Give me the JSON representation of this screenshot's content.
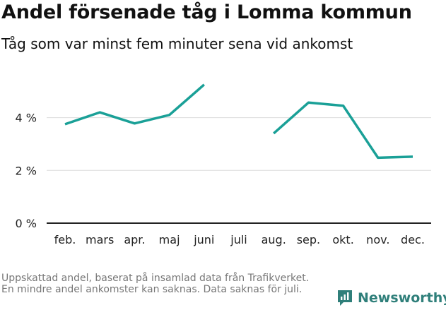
{
  "chart_data": {
    "type": "line",
    "title": "Andel försenade tåg i Lomma kommun",
    "subtitle": "Tåg som var minst fem minuter sena vid ankomst",
    "categories": [
      "feb.",
      "mars",
      "apr.",
      "maj",
      "juni",
      "juli",
      "aug.",
      "sep.",
      "okt.",
      "nov.",
      "dec."
    ],
    "series": [
      {
        "values": [
          3.75,
          4.2,
          3.78,
          4.1,
          5.25,
          null,
          3.4,
          4.57,
          4.45,
          2.48,
          2.52
        ]
      }
    ],
    "ylim": [
      0,
      5.3
    ],
    "yticks": [
      0,
      2,
      4
    ],
    "ytick_labels": [
      "0 %",
      "2 %",
      "4 %"
    ],
    "grid": true,
    "line_color": "#1aa097",
    "note": "Uppskattad andel, baserat på insamlad data från Trafikverket. En mindre andel ankomster kan saknas. Data saknas för juli."
  },
  "brand": {
    "name": "Newsworthy",
    "icon": "newsworthy-logo-icon",
    "color": "#2f7f7a"
  }
}
